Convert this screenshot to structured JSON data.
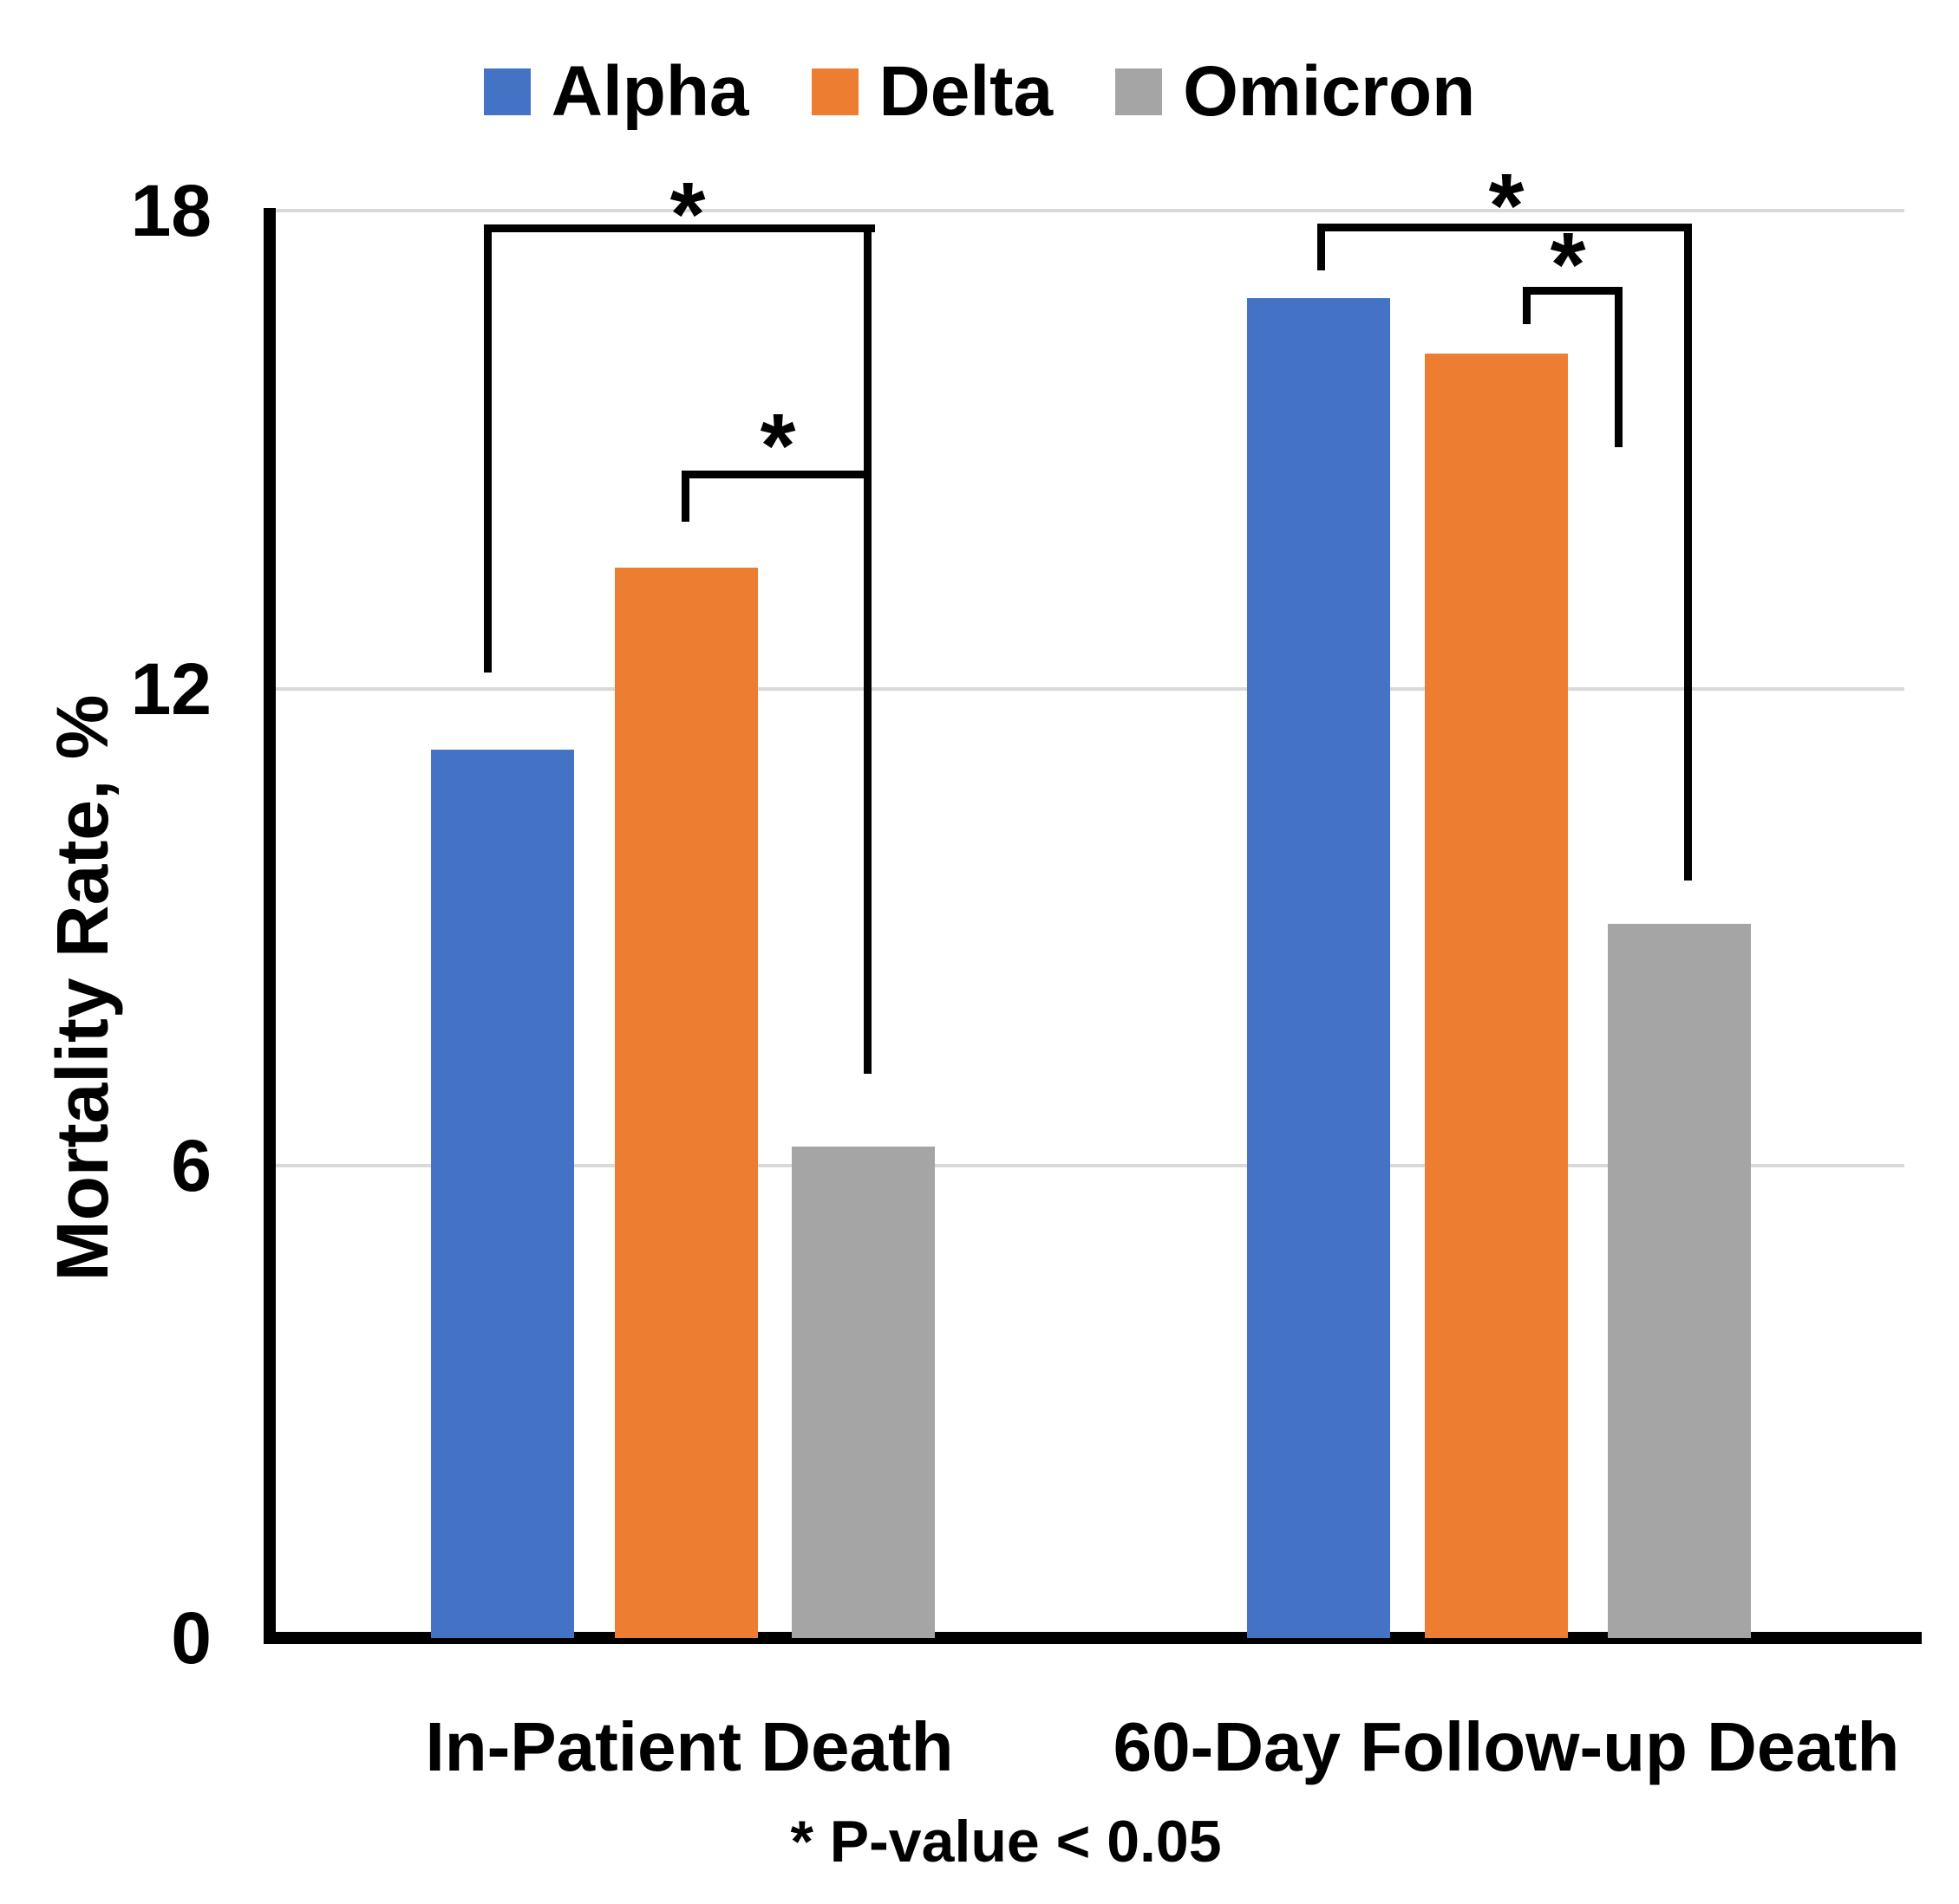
{
  "chart_data": {
    "type": "bar",
    "title": "",
    "categories": [
      "In-Patient Death",
      "60-Day Follow-up Death"
    ],
    "series": [
      {
        "name": "Alpha",
        "color": "#4472C4",
        "values": [
          11.2,
          16.9
        ]
      },
      {
        "name": "Delta",
        "color": "#ED7D31",
        "values": [
          13.5,
          16.2
        ]
      },
      {
        "name": "Omicron",
        "color": "#A5A5A5",
        "values": [
          6.2,
          9.0
        ]
      }
    ],
    "xlabel": "",
    "ylabel": "Mortality Rate, %",
    "ylim": [
      0,
      18
    ],
    "yticks": [
      "18",
      "12",
      "6",
      "0"
    ],
    "grid": "horizontal-light",
    "legend_position": "top-center",
    "footnote": "* P-value < 0.05",
    "significance": {
      "symbol": "*",
      "note": "P-value < 0.05",
      "comparisons": [
        {
          "category": "In-Patient Death",
          "pair": [
            "Alpha",
            "Omicron"
          ]
        },
        {
          "category": "In-Patient Death",
          "pair": [
            "Delta",
            "Omicron"
          ]
        },
        {
          "category": "60-Day Follow-up Death",
          "pair": [
            "Alpha",
            "Omicron"
          ]
        },
        {
          "category": "60-Day Follow-up Death",
          "pair": [
            "Delta",
            "Omicron"
          ]
        }
      ]
    },
    "colors": {
      "background": "#FFFFFF",
      "axis": "#000000",
      "gridline": "#D9D9D9",
      "text": "#000000"
    }
  }
}
